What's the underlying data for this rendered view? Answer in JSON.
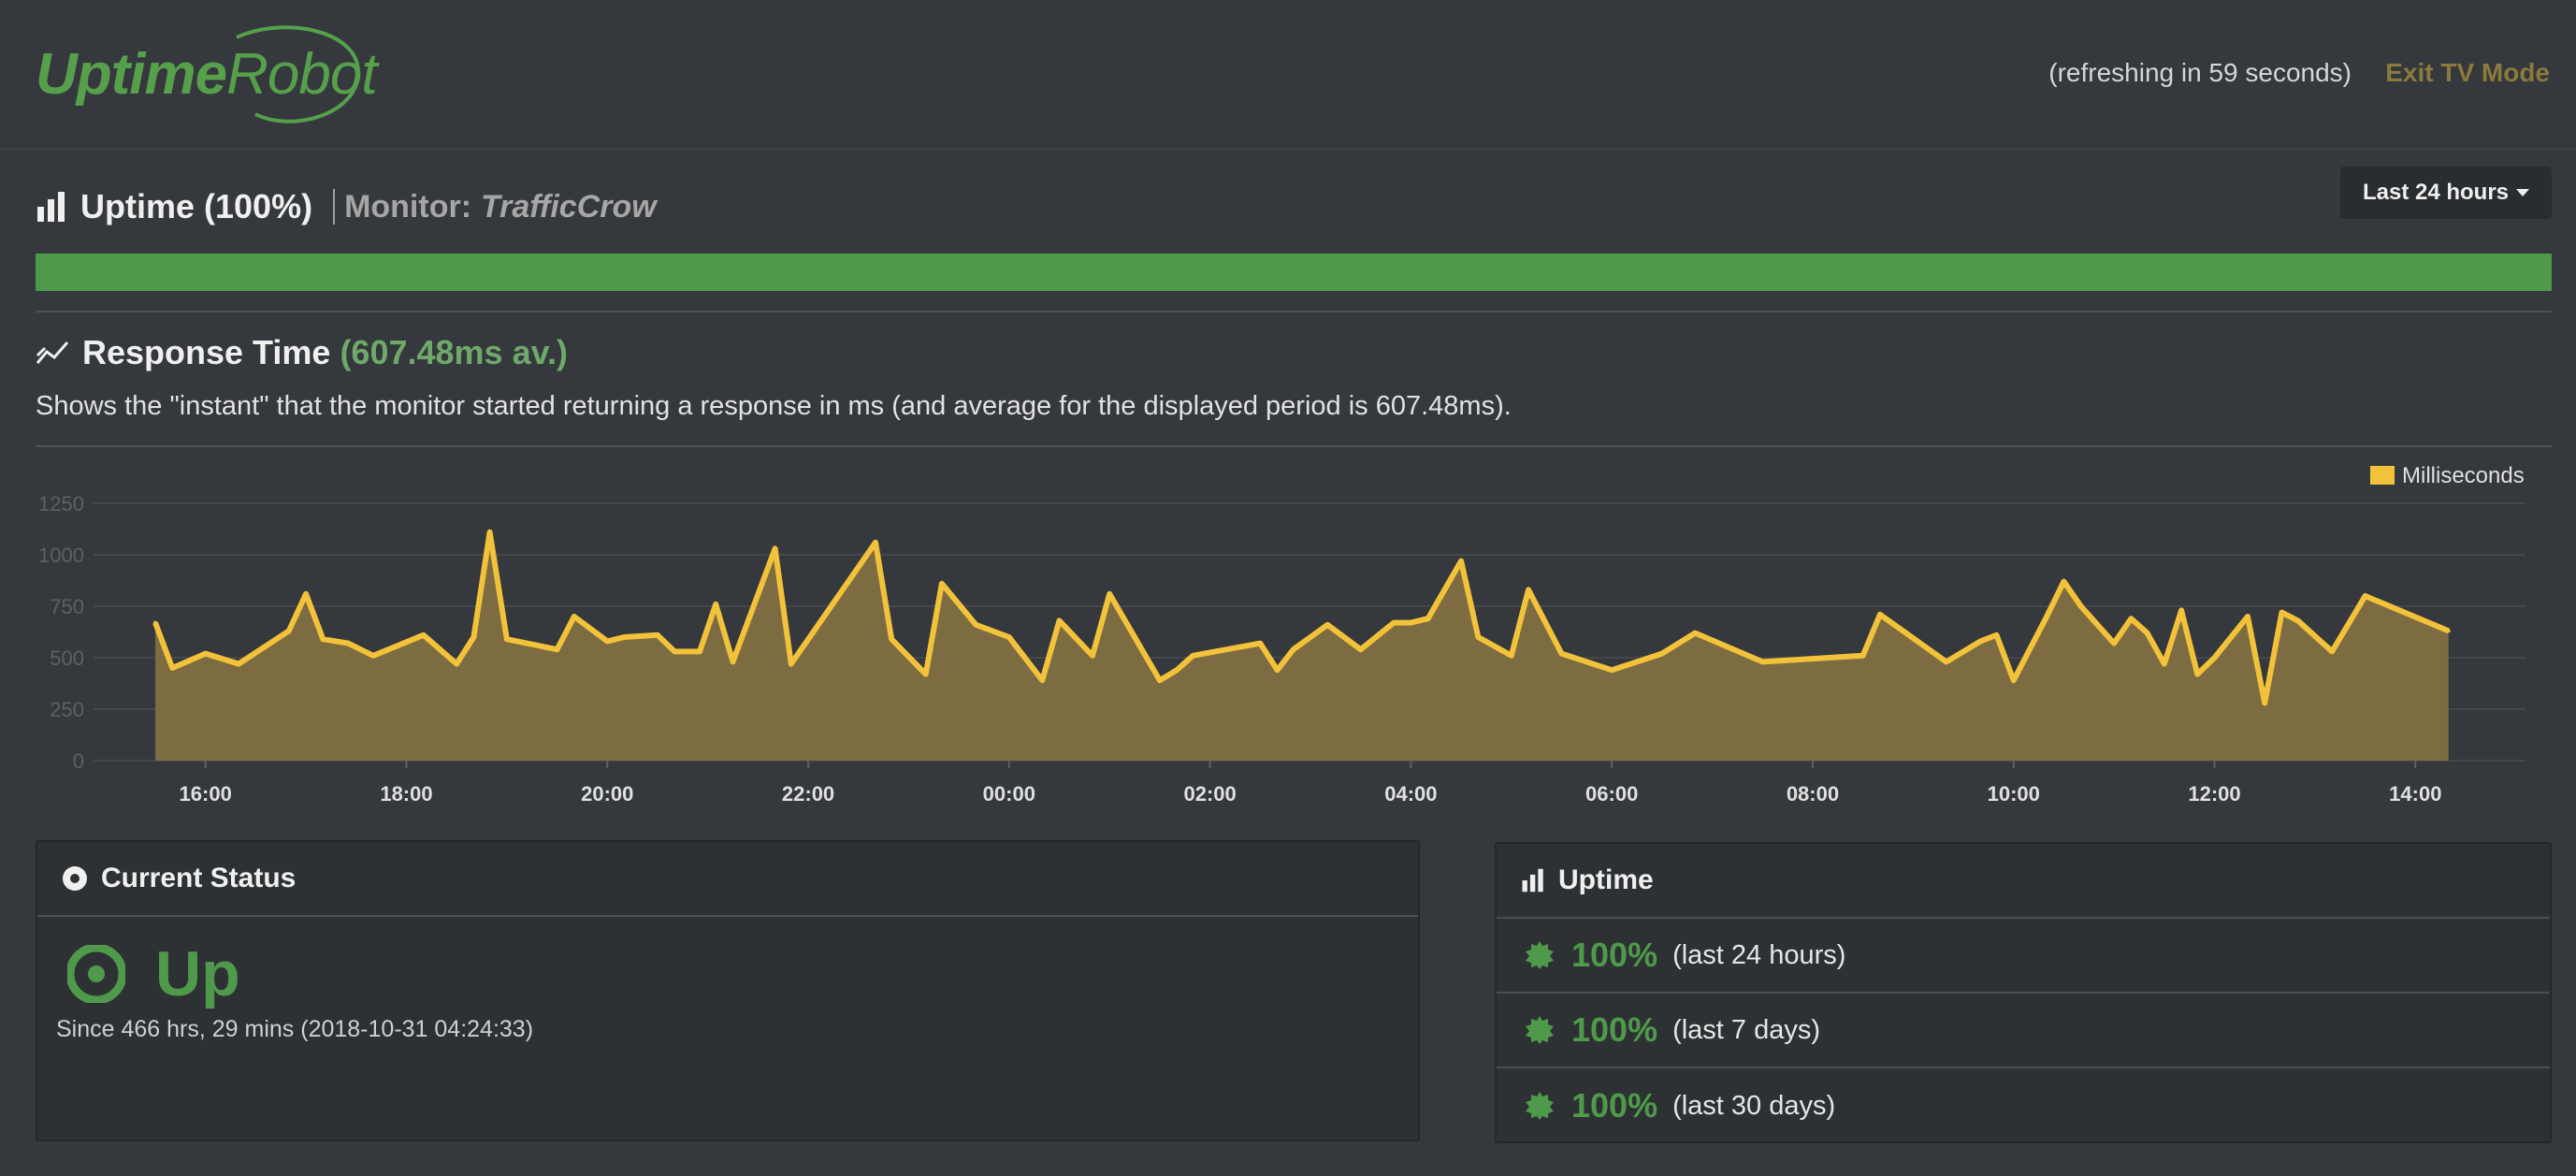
{
  "header": {
    "logo_uptime": "Uptime",
    "logo_robot": "Robot",
    "refresh_text": "(refreshing in 59 seconds)",
    "exit_tv_label": "Exit TV Mode"
  },
  "uptime_section": {
    "title": "Uptime (100%)",
    "monitor_label": "Monitor:",
    "monitor_name": "TrafficCrow",
    "period_label": "Last 24 hours",
    "uptime_fraction": 1.0,
    "bar_color": "#4e9a4a"
  },
  "response_time": {
    "title": "Response Time",
    "average": "(607.48ms av.)",
    "description": "Shows the \"instant\" that the monitor started returning a response in ms (and average for the displayed period is 607.48ms)."
  },
  "chart_data": {
    "type": "area",
    "legend": "Milliseconds",
    "legend_position": "top-right",
    "series_color": "#f2c23a",
    "fill_color": "#7d6c41",
    "grid": true,
    "ylim": [
      0,
      1250
    ],
    "yticks": [
      "0",
      "250",
      "500",
      "750",
      "1000",
      "1250"
    ],
    "xlim": [
      15.5,
      14.5
    ],
    "xticks": [
      "16:00",
      "18:00",
      "20:00",
      "22:00",
      "00:00",
      "02:00",
      "04:00",
      "06:00",
      "08:00",
      "10:00",
      "12:00",
      "14:00"
    ],
    "x_hours": [
      15.5,
      15.67,
      16.0,
      16.33,
      16.83,
      17.0,
      17.17,
      17.42,
      17.67,
      18.17,
      18.5,
      18.67,
      18.83,
      19.0,
      19.5,
      19.67,
      20.0,
      20.17,
      20.5,
      20.67,
      20.92,
      21.08,
      21.25,
      21.67,
      21.83,
      22.67,
      22.83,
      23.17,
      23.33,
      23.67,
      24.0,
      24.33,
      24.5,
      24.83,
      25.0,
      25.5,
      25.67,
      25.83,
      26.5,
      26.67,
      26.83,
      27.17,
      27.5,
      27.83,
      28.0,
      28.17,
      28.5,
      28.67,
      29.0,
      29.17,
      29.5,
      30.0,
      30.5,
      30.83,
      31.5,
      32.5,
      32.67,
      33.33,
      33.67,
      33.83,
      34.0,
      34.33,
      34.5,
      34.67,
      35.0,
      35.17,
      35.33,
      35.5,
      35.67,
      35.83,
      36.0,
      36.33,
      36.5,
      36.67,
      36.83,
      37.17,
      37.5,
      38.33
    ],
    "values": [
      670,
      450,
      520,
      470,
      630,
      810,
      590,
      570,
      510,
      610,
      470,
      600,
      1110,
      590,
      540,
      700,
      580,
      600,
      610,
      530,
      530,
      760,
      480,
      1030,
      470,
      1060,
      590,
      420,
      860,
      660,
      600,
      390,
      680,
      510,
      810,
      390,
      440,
      510,
      570,
      440,
      540,
      660,
      540,
      670,
      670,
      690,
      970,
      600,
      510,
      830,
      520,
      440,
      520,
      620,
      480,
      510,
      710,
      480,
      580,
      610,
      390,
      700,
      870,
      750,
      570,
      690,
      620,
      470,
      730,
      420,
      500,
      700,
      280,
      720,
      680,
      530,
      800,
      630
    ]
  },
  "current_status": {
    "title": "Current Status",
    "state": "Up",
    "since": "Since 466 hrs, 29 mins (2018-10-31 04:24:33)"
  },
  "uptime_panel": {
    "title": "Uptime",
    "rows": [
      {
        "pct": "100%",
        "label": "(last 24 hours)"
      },
      {
        "pct": "100%",
        "label": "(last 7 days)"
      },
      {
        "pct": "100%",
        "label": "(last 30 days)"
      }
    ]
  }
}
